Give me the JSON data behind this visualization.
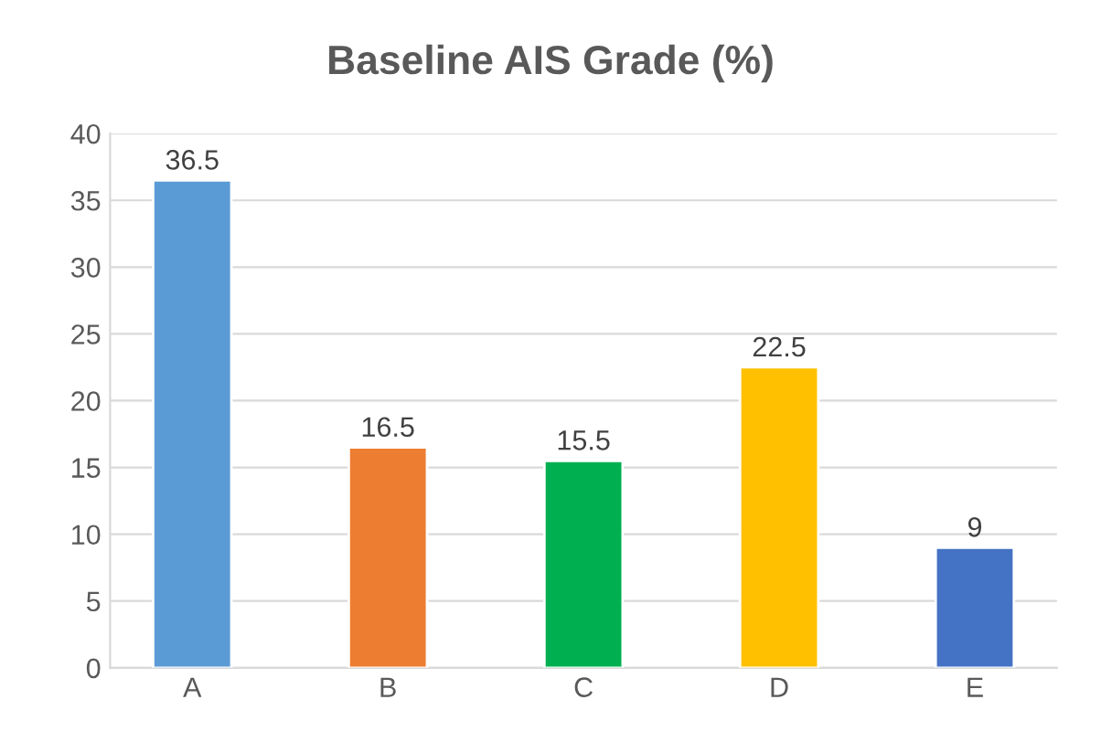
{
  "chart_data": {
    "type": "bar",
    "title": "Baseline AIS Grade (%)",
    "categories": [
      "A",
      "B",
      "C",
      "D",
      "E"
    ],
    "values": [
      36.5,
      16.5,
      15.5,
      22.5,
      9
    ],
    "colors": [
      "#5b9bd5",
      "#ed7d31",
      "#00b050",
      "#ffc000",
      "#4472c4"
    ],
    "ylim": [
      0,
      40
    ],
    "yticks": [
      0,
      5,
      10,
      15,
      20,
      25,
      30,
      35,
      40
    ],
    "grid": "y",
    "data_labels": true
  }
}
